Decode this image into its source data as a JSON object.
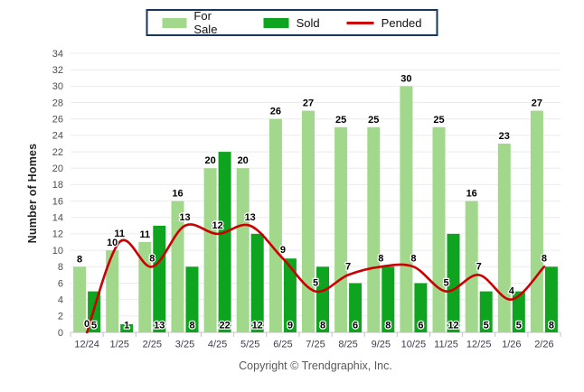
{
  "legend": {
    "items": [
      {
        "label": "For Sale",
        "type": "bar",
        "color": "#A2D88B"
      },
      {
        "label": "Sold",
        "type": "bar",
        "color": "#0FA41F"
      },
      {
        "label": "Pended",
        "type": "line",
        "color": "#CC0000"
      }
    ],
    "border_color": "#17375D"
  },
  "footer": {
    "copyright": "Copyright © Trendgraphix, Inc."
  },
  "chart_data": {
    "type": "bar",
    "categories": [
      "12/24",
      "1/25",
      "2/25",
      "3/25",
      "4/25",
      "5/25",
      "6/25",
      "7/25",
      "8/25",
      "9/25",
      "10/25",
      "11/25",
      "12/25",
      "1/26",
      "2/26"
    ],
    "series": [
      {
        "name": "For Sale",
        "render": "bar",
        "color": "#A2D88B",
        "values": [
          8,
          10,
          11,
          16,
          20,
          20,
          26,
          27,
          25,
          25,
          30,
          25,
          16,
          23,
          27
        ]
      },
      {
        "name": "Sold",
        "render": "bar",
        "color": "#0FA41F",
        "values": [
          5,
          1,
          13,
          8,
          22,
          12,
          9,
          8,
          6,
          8,
          6,
          12,
          5,
          5,
          8
        ]
      },
      {
        "name": "Pended",
        "render": "line",
        "color": "#CC0000",
        "values": [
          0,
          11,
          8,
          13,
          12,
          13,
          9,
          5,
          7,
          8,
          8,
          5,
          7,
          4,
          8
        ]
      }
    ],
    "title": "",
    "xlabel": "",
    "ylabel": "Number of Homes",
    "ylim": [
      0,
      34
    ],
    "ytick_step": 2,
    "grid": true,
    "legend_position": "top",
    "data_labels": true
  }
}
